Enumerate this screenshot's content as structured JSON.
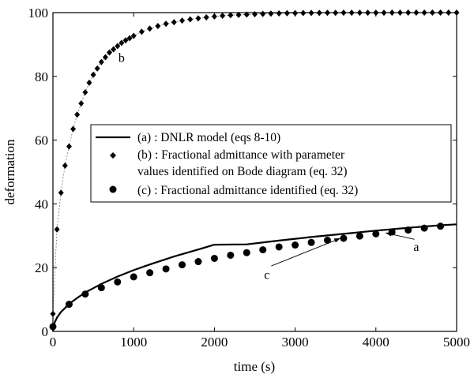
{
  "chart_data": {
    "type": "line",
    "xlabel": "time (s)",
    "ylabel": "deformation",
    "xlim": [
      0,
      5000
    ],
    "ylim": [
      0,
      100
    ],
    "xticks": [
      0,
      1000,
      2000,
      3000,
      4000,
      5000
    ],
    "yticks": [
      0,
      20,
      40,
      60,
      80,
      100
    ],
    "grid": false,
    "legend_position": "center-right",
    "series": [
      {
        "key": "a",
        "name": "(a) : DNLR model (eqs 8-10)",
        "style": "solid-line",
        "color": "#000000",
        "x": [
          0,
          20,
          50,
          100,
          200,
          300,
          400,
          600,
          800,
          1000,
          1200,
          1500,
          1800,
          2000,
          2400,
          2800,
          3200,
          3600,
          4000,
          4400,
          4800,
          5000
        ],
        "y": [
          0,
          2.7,
          4.3,
          6.1,
          8.6,
          10.5,
          12.2,
          14.9,
          17.2,
          19.2,
          21.0,
          23.5,
          25.7,
          27.2,
          27.3,
          28.5,
          29.6,
          30.6,
          31.6,
          32.5,
          33.3,
          33.6
        ]
      },
      {
        "key": "b",
        "name": "(b) : Fractional admittance with parameter values identified on Bode diagram (eq. 32)",
        "style": "diamond-markers",
        "color": "#000000",
        "x": [
          0,
          50,
          100,
          150,
          200,
          250,
          300,
          350,
          400,
          450,
          500,
          550,
          600,
          650,
          700,
          750,
          800,
          850,
          900,
          950,
          1000,
          1100,
          1200,
          1300,
          1400,
          1500,
          1600,
          1700,
          1800,
          1900,
          2000,
          2100,
          2200,
          2300,
          2400,
          2500,
          2600,
          2700,
          2800,
          2900,
          3000,
          3100,
          3200,
          3300,
          3400,
          3500,
          3600,
          3700,
          3800,
          3900,
          4000,
          4100,
          4200,
          4300,
          4400,
          4500,
          4600,
          4700,
          4800,
          4900,
          5000
        ],
        "y": [
          5.5,
          32,
          43.5,
          52,
          58,
          63.5,
          68,
          71.5,
          75,
          78,
          80.5,
          82.5,
          84.5,
          86,
          87.5,
          88.5,
          89.5,
          90.5,
          91.3,
          92,
          92.7,
          94,
          95,
          95.8,
          96.5,
          97,
          97.5,
          97.9,
          98.2,
          98.5,
          98.8,
          99,
          99.2,
          99.3,
          99.4,
          99.5,
          99.6,
          99.7,
          99.75,
          99.8,
          99.85,
          99.88,
          99.9,
          99.92,
          99.94,
          99.95,
          99.96,
          99.97,
          99.97,
          99.98,
          99.98,
          99.98,
          99.99,
          99.99,
          99.99,
          99.99,
          100,
          100,
          100,
          100,
          100
        ]
      },
      {
        "key": "c",
        "name": "(c) : Fractional admittance identified (eq. 32)",
        "style": "circle-markers",
        "color": "#000000",
        "x": [
          0,
          200,
          400,
          600,
          800,
          1000,
          1200,
          1400,
          1600,
          1800,
          2000,
          2200,
          2400,
          2600,
          2800,
          3000,
          3200,
          3400,
          3600,
          3800,
          4000,
          4200,
          4400,
          4600,
          4800
        ],
        "y": [
          1.5,
          8.5,
          11.7,
          13.7,
          15.5,
          17.1,
          18.4,
          19.6,
          20.9,
          21.9,
          22.9,
          23.9,
          24.7,
          25.6,
          26.5,
          27.1,
          27.9,
          28.6,
          29.2,
          29.9,
          30.6,
          31.2,
          31.8,
          32.4,
          33.0
        ]
      }
    ],
    "annotations": [
      {
        "text": "b",
        "x": 850,
        "y": 84.5
      },
      {
        "text": "a",
        "x": 4500,
        "y": 25.3,
        "arrow_to": [
          4120,
          30.9
        ]
      },
      {
        "text": "c",
        "x": 2650,
        "y": 16.5,
        "arrow_to": [
          3560,
          29.2
        ]
      }
    ]
  }
}
